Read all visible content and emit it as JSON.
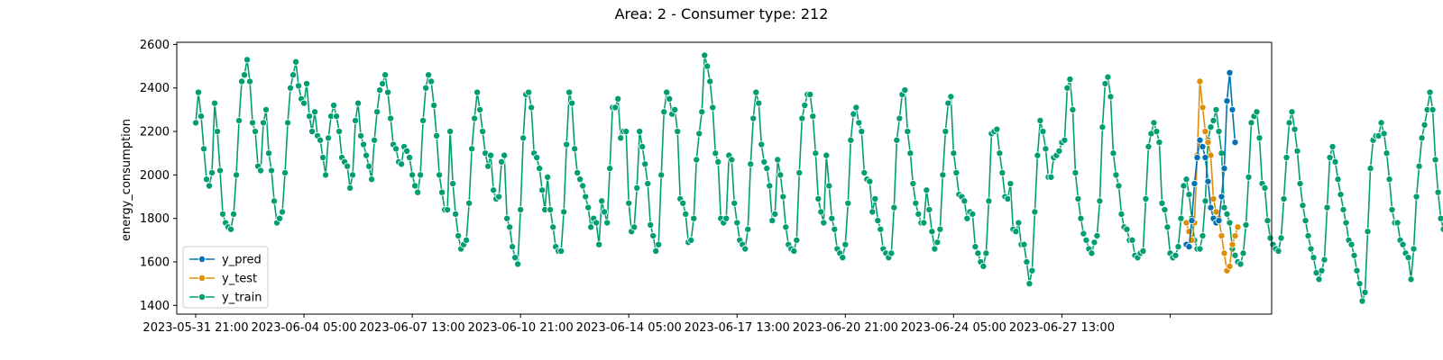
{
  "chart_data": {
    "type": "line",
    "title": "Area: 2 - Consumer type: 212",
    "xlabel": "",
    "ylabel": "energy_consumption",
    "x_start": "2023-05-31 21:00",
    "x_end": "2023-07-03 09:00",
    "x_step_hours": 2,
    "xlim": [
      "2023-05-31 07:00",
      "2023-07-04 00:00"
    ],
    "ylim": [
      1360,
      2610
    ],
    "yticks": [
      1400,
      1600,
      1800,
      2000,
      2200,
      2400,
      2600
    ],
    "xticks": [
      {
        "label": "2023-05-31 21:00",
        "at": "2023-05-31 21:00"
      },
      {
        "label": "2023-06-04 05:00",
        "at": "2023-06-04 05:00"
      },
      {
        "label": "2023-06-07 13:00",
        "at": "2023-06-07 13:00"
      },
      {
        "label": "2023-06-10 21:00",
        "at": "2023-06-10 21:00"
      },
      {
        "label": "2023-06-14 05:00",
        "at": "2023-06-14 05:00"
      },
      {
        "label": "2023-06-17 13:00",
        "at": "2023-06-17 13:00"
      },
      {
        "label": "2023-06-20 21:00",
        "at": "2023-06-20 21:00"
      },
      {
        "label": "2023-06-24 05:00",
        "at": "2023-06-24 05:00"
      },
      {
        "label": "2023-06-27 13:00",
        "at": "2023-06-27 13:00"
      },
      {
        "label": "",
        "at": "2023-06-30 21:00"
      }
    ],
    "grid": false,
    "legend_position": "lower-left",
    "legend": [
      "y_pred",
      "y_test",
      "y_train"
    ],
    "series": [
      {
        "name": "y_train",
        "color": "#029e73",
        "x_start": "2023-05-31 21:00",
        "values": [
          2240,
          2380,
          2270,
          2120,
          1980,
          1950,
          2010,
          2330,
          2200,
          2020,
          1820,
          1780,
          1760,
          1750,
          1820,
          2000,
          2250,
          2430,
          2460,
          2530,
          2430,
          2240,
          2200,
          2040,
          2020,
          2240,
          2300,
          2100,
          2020,
          1880,
          1780,
          1800,
          1830,
          2010,
          2240,
          2400,
          2460,
          2520,
          2410,
          2350,
          2330,
          2420,
          2270,
          2200,
          2290,
          2180,
          2160,
          2080,
          2000,
          2170,
          2270,
          2320,
          2270,
          2200,
          2080,
          2060,
          2040,
          1940,
          2000,
          2250,
          2330,
          2180,
          2140,
          2090,
          2040,
          1980,
          2160,
          2290,
          2390,
          2420,
          2460,
          2380,
          2260,
          2140,
          2120,
          2060,
          2050,
          2130,
          2110,
          2080,
          2000,
          1950,
          1920,
          2000,
          2250,
          2400,
          2460,
          2430,
          2320,
          2180,
          2000,
          1920,
          1840,
          1840,
          2200,
          1960,
          1820,
          1720,
          1660,
          1680,
          1700,
          1870,
          2120,
          2260,
          2380,
          2300,
          2200,
          2100,
          2040,
          2090,
          1930,
          1890,
          1900,
          2060,
          2090,
          1800,
          1760,
          1670,
          1620,
          1590,
          1840,
          2170,
          2370,
          2380,
          2310,
          2100,
          2080,
          2030,
          1930,
          1840,
          1990,
          1840,
          1760,
          1670,
          1650,
          1650,
          1830,
          2140,
          2380,
          2330,
          2120,
          2010,
          1980,
          1950,
          1900,
          1850,
          1760,
          1800,
          1780,
          1680,
          1880,
          1830,
          1780,
          2030,
          2310,
          2310,
          2350,
          2170,
          2200,
          2200,
          1870,
          1740,
          1760,
          1940,
          2200,
          2130,
          2050,
          1960,
          1770,
          1720,
          1650,
          1680,
          2000,
          2290,
          2380,
          2350,
          2280,
          2300,
          2200,
          1890,
          1870,
          1820,
          1690,
          1700,
          1800,
          2070,
          2190,
          2290,
          2550,
          2500,
          2430,
          2310,
          2100,
          2060,
          1800,
          1780,
          1800,
          2090,
          2070,
          1870,
          1780,
          1700,
          1680,
          1660,
          1750,
          2050,
          2260,
          2380,
          2330,
          2140,
          2060,
          2030,
          1950,
          1790,
          1820,
          2070,
          2000,
          1900,
          1760,
          1680,
          1660,
          1650,
          1700,
          2010,
          2260,
          2320,
          2370,
          2370,
          2270,
          2100,
          1890,
          1830,
          1780,
          2090,
          1950,
          1800,
          1750,
          1660,
          1640,
          1620,
          1680,
          1870,
          2160,
          2280,
          2310,
          2240,
          2200,
          2010,
          1980,
          1970,
          1830,
          1890,
          1790,
          1750,
          1660,
          1640,
          1620,
          1640,
          1850,
          2160,
          2260,
          2370,
          2390,
          2200,
          2100,
          1960,
          1870,
          1820,
          1780,
          1780,
          1930,
          1840,
          1740,
          1660,
          1690,
          1750,
          2000,
          2200,
          2330,
          2360,
          2100,
          2010,
          1910,
          1900,
          1880,
          1800,
          1830,
          1820,
          1670,
          1640,
          1600,
          1580,
          1640,
          1880,
          2190,
          2200,
          2210,
          2100,
          2010,
          1900,
          1890,
          1960,
          1750,
          1740,
          1780,
          1680,
          1680,
          1600,
          1500,
          1560,
          1830,
          2090,
          2250,
          2200,
          2120,
          1990,
          1990,
          2080,
          2090,
          2110,
          2150,
          2160,
          2400,
          2440,
          2300,
          2010,
          1890,
          1800,
          1730,
          1700,
          1660,
          1640,
          1690,
          1720,
          1880,
          2220,
          2420,
          2450,
          2360,
          2100,
          2000,
          1950,
          1820,
          1760,
          1750,
          1700,
          1700,
          1630,
          1620,
          1640,
          1650,
          1890,
          2130,
          2190,
          2240,
          2200,
          2150,
          1870,
          1840,
          1760,
          1640,
          1620,
          1630,
          1670,
          1800,
          1950,
          1980,
          1910,
          1800,
          1700,
          1660,
          1660,
          1720,
          1880,
          2160,
          2220,
          2250,
          2300,
          2200,
          2100,
          1850,
          1820,
          1780,
          1660,
          1630,
          1600,
          1590,
          1640,
          1770,
          1990,
          2240,
          2270,
          2290,
          2170,
          1960,
          1940,
          1790,
          1710,
          1680,
          1660,
          1650,
          1710,
          1890,
          2080,
          2240,
          2290,
          2210,
          2110,
          1960,
          1860,
          1790,
          1720,
          1660,
          1620,
          1550,
          1520,
          1560,
          1610,
          1850,
          2080,
          2130,
          2060,
          1980,
          1910,
          1840,
          1780,
          1700,
          1680,
          1630,
          1560,
          1500,
          1420,
          1460,
          1740,
          2030,
          2160,
          2180,
          2180,
          2240,
          2190,
          2100,
          1980,
          1840,
          1780,
          1780,
          1700,
          1680,
          1640,
          1620,
          1520,
          1660,
          1900,
          2040,
          2170,
          2230,
          2300,
          2380,
          2300,
          2070,
          1920,
          1800,
          1750,
          1690,
          1680,
          1660,
          1630,
          1610,
          1620,
          1680,
          1880,
          2150,
          2260,
          2340,
          2310,
          2230,
          2000,
          1960,
          1880,
          1770,
          1760,
          1730,
          1720,
          1710,
          1660,
          1610,
          1630,
          1850,
          2140,
          2260,
          2220,
          2170,
          1980,
          1900,
          1840,
          1810,
          1770,
          1720,
          1660,
          1640,
          1620,
          1630,
          1790,
          2070,
          2290,
          2470
        ]
      },
      {
        "name": "y_test",
        "color": "#de8f05",
        "x_start": "2023-07-01 09:00",
        "values": [
          1780,
          1740,
          1700,
          1780,
          2090,
          2430,
          2310,
          2200,
          2150,
          2090,
          1890,
          1830,
          1800,
          1720,
          1640,
          1560,
          1580,
          1680,
          1720,
          1760
        ]
      },
      {
        "name": "y_pred",
        "color": "#0173b2",
        "x_start": "2023-07-01 09:00",
        "values": [
          1680,
          1670,
          1790,
          1960,
          2080,
          2160,
          2130,
          2080,
          1970,
          1850,
          1800,
          1780,
          1790,
          1900,
          2030,
          2340,
          2470,
          2300,
          2150
        ]
      }
    ]
  }
}
